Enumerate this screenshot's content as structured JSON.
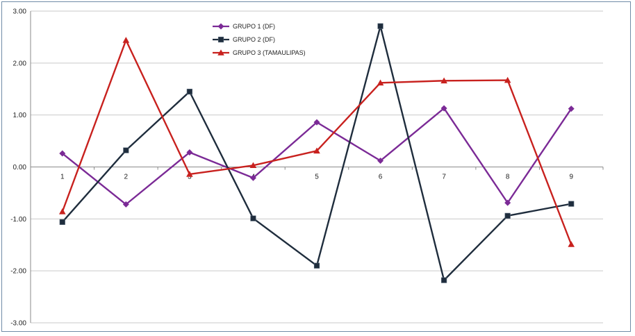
{
  "chart_data": {
    "type": "line",
    "categories": [
      "1",
      "2",
      "3",
      "4",
      "5",
      "6",
      "7",
      "8",
      "9"
    ],
    "series": [
      {
        "name": "GRUPO 1 (DF)",
        "color": "#7b2a96",
        "marker": "diamond",
        "values": [
          0.26,
          -0.72,
          0.28,
          -0.21,
          0.86,
          0.12,
          1.13,
          -0.69,
          1.12
        ]
      },
      {
        "name": "GRUPO 2 (DF)",
        "color": "#1f2d3d",
        "marker": "square",
        "values": [
          -1.06,
          0.32,
          1.45,
          -0.99,
          -1.9,
          2.71,
          -2.18,
          -0.94,
          -0.71
        ]
      },
      {
        "name": "GRUPO 3 (TAMAULIPAS)",
        "color": "#c8211e",
        "marker": "triangle",
        "values": [
          -0.86,
          2.44,
          -0.14,
          0.03,
          0.31,
          1.62,
          1.66,
          1.67,
          -1.49
        ]
      }
    ],
    "yticks": [
      "3.00",
      "2.00",
      "1.00",
      "0.00",
      "-1.00",
      "-2.00",
      "-3.00"
    ],
    "ylim": [
      -3,
      3
    ],
    "grid": true,
    "legend": "top-center",
    "title": "",
    "xlabel": "",
    "ylabel": ""
  }
}
